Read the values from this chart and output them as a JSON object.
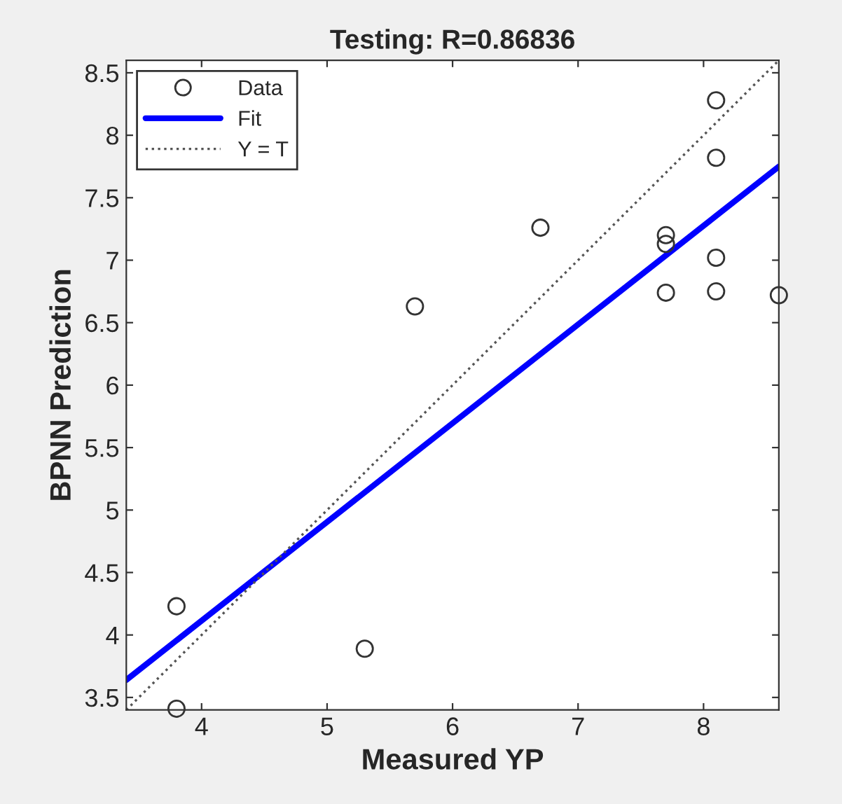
{
  "chart_data": {
    "type": "scatter",
    "title": "Testing: R=0.86836",
    "xlabel": "Measured YP",
    "ylabel": "BPNN Prediction",
    "series": [
      {
        "name": "Data",
        "marker": "circle",
        "color": "#333333",
        "x": [
          3.8,
          3.8,
          5.3,
          5.7,
          6.7,
          7.7,
          7.7,
          7.7,
          8.1,
          8.1,
          8.1,
          8.1,
          8.6
        ],
        "values": [
          4.23,
          3.41,
          3.89,
          6.63,
          7.26,
          7.2,
          7.13,
          6.74,
          8.28,
          7.82,
          7.02,
          6.75,
          6.72
        ]
      },
      {
        "name": "Fit",
        "type": "line",
        "line_style": "solid",
        "color": "#0000ff",
        "x": [
          3.4,
          8.6
        ],
        "values": [
          3.64,
          7.75
        ]
      },
      {
        "name": "Y = T",
        "type": "line",
        "line_style": "dotted",
        "color": "#555555",
        "x": [
          3.4,
          8.6
        ],
        "values": [
          3.4,
          8.6
        ]
      }
    ],
    "xlim": [
      3.4,
      8.6
    ],
    "ylim": [
      3.4,
      8.6
    ],
    "xticks": [
      4,
      5,
      6,
      7,
      8
    ],
    "yticks": [
      3.5,
      4,
      4.5,
      5,
      5.5,
      6,
      6.5,
      7,
      7.5,
      8,
      8.5
    ],
    "grid": false,
    "legend": "top left"
  }
}
